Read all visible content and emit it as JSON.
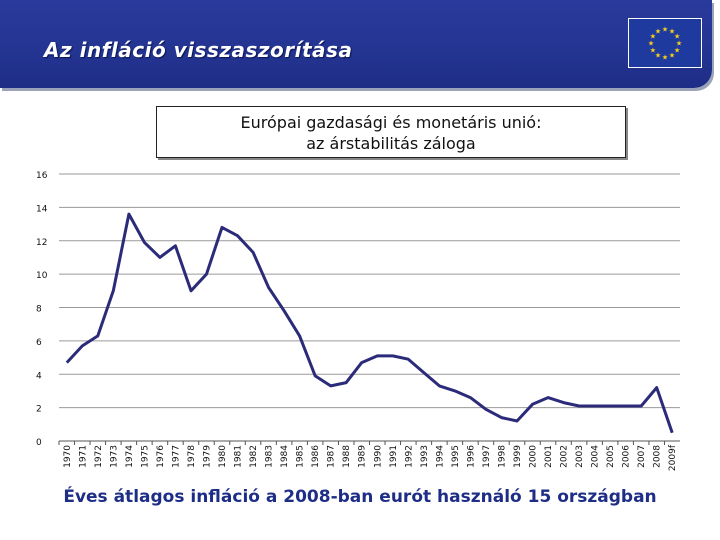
{
  "header": {
    "title": "Az infláció visszaszorítása"
  },
  "caption": "Éves átlagos infláció a 2008-ban eurót használó 15 országban",
  "colors": {
    "banner": "#233491",
    "line": "#2b2b7a",
    "grid": "#9a9a9a"
  },
  "chart_data": {
    "type": "line",
    "title_line1": "Európai gazdasági és monetáris unió:",
    "title_line2": "az árstabilitás záloga",
    "xlabel": "",
    "ylabel": "",
    "ylim": [
      0,
      16
    ],
    "yticks": [
      "0",
      "2",
      "4",
      "6",
      "8",
      "10",
      "12",
      "14",
      "16"
    ],
    "grid": true,
    "categories": [
      "1970",
      "1971",
      "1972",
      "1973",
      "1974",
      "1975",
      "1976",
      "1977",
      "1978",
      "1979",
      "1980",
      "1981",
      "1982",
      "1983",
      "1984",
      "1985",
      "1986",
      "1987",
      "1988",
      "1989",
      "1990",
      "1991",
      "1992",
      "1993",
      "1994",
      "1995",
      "1996",
      "1997",
      "1998",
      "1999",
      "2000",
      "2001",
      "2002",
      "2003",
      "2004",
      "2005",
      "2006",
      "2007",
      "2008",
      "2009f"
    ],
    "series": [
      {
        "name": "Infláció",
        "values": [
          4.7,
          5.7,
          6.3,
          9.0,
          13.6,
          11.9,
          11.0,
          11.7,
          9.0,
          10.0,
          12.8,
          12.3,
          11.3,
          9.2,
          7.8,
          6.3,
          3.9,
          3.3,
          3.5,
          4.7,
          5.1,
          5.1,
          4.9,
          4.1,
          3.3,
          3.0,
          2.6,
          1.9,
          1.4,
          1.2,
          2.2,
          2.6,
          2.3,
          2.1,
          2.1,
          2.1,
          2.1,
          2.1,
          3.2,
          0.5
        ]
      }
    ]
  }
}
